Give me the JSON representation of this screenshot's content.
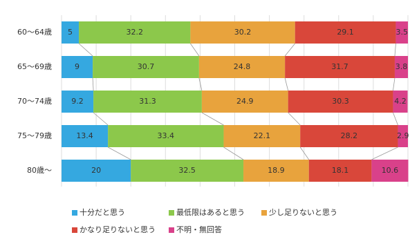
{
  "chart_data": {
    "type": "bar",
    "orientation": "horizontal",
    "stacked": true,
    "categories": [
      "60〜64歳",
      "65〜69歳",
      "70〜74歳",
      "75〜79歳",
      "80歳〜"
    ],
    "series": [
      {
        "name": "十分だと思う",
        "color": "#35a8e0",
        "values": [
          5,
          9,
          9.2,
          13.4,
          20
        ]
      },
      {
        "name": "最低限はあると思う",
        "color": "#8cc84b",
        "values": [
          32.2,
          30.7,
          31.3,
          33.4,
          32.5
        ]
      },
      {
        "name": "少し足りないと思う",
        "color": "#e8a33d",
        "values": [
          30.2,
          24.8,
          24.9,
          22.1,
          18.9
        ]
      },
      {
        "name": "かなり足りないと思う",
        "color": "#d9473a",
        "values": [
          29.1,
          31.7,
          30.3,
          28.2,
          18.1
        ]
      },
      {
        "name": "不明・無回答",
        "color": "#d9418a",
        "values": [
          3.5,
          3.8,
          4.2,
          2.9,
          10.6
        ]
      }
    ],
    "xlim": [
      0,
      100
    ],
    "xticks": [
      0,
      10,
      20,
      30,
      40,
      50,
      60,
      70,
      80,
      90,
      100
    ],
    "grid": true
  }
}
